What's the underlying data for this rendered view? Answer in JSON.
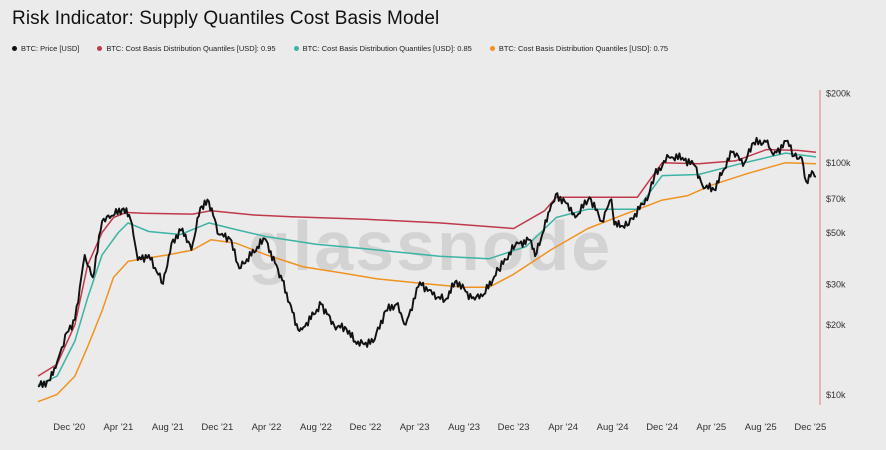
{
  "title": "Risk Indicator: Supply Quantiles Cost Basis Model",
  "watermark": "glassnode",
  "colors": {
    "price": "#111111",
    "q95": "#c0394b",
    "q85": "#3bb3a5",
    "q75": "#f0921f",
    "axis": "#e07a7a"
  },
  "chart_data": {
    "type": "line",
    "title": "Risk Indicator: Supply Quantiles Cost Basis Model",
    "y_scale": "log",
    "ylim": [
      9000,
      200000
    ],
    "y_ticks": [
      {
        "value": 10000,
        "label": "$10k"
      },
      {
        "value": 20000,
        "label": "$20k"
      },
      {
        "value": 30000,
        "label": "$30k"
      },
      {
        "value": 50000,
        "label": "$50k"
      },
      {
        "value": 70000,
        "label": "$70k"
      },
      {
        "value": 100000,
        "label": "$100k"
      },
      {
        "value": 200000,
        "label": "$200k"
      }
    ],
    "x_range": [
      "2020-09-15",
      "2025-12-20"
    ],
    "x_ticks": [
      {
        "date": "2020-12-01",
        "label": "Dec '20"
      },
      {
        "date": "2021-04-01",
        "label": "Apr '21"
      },
      {
        "date": "2021-08-01",
        "label": "Aug '21"
      },
      {
        "date": "2021-12-01",
        "label": "Dec '21"
      },
      {
        "date": "2022-04-01",
        "label": "Apr '22"
      },
      {
        "date": "2022-08-01",
        "label": "Aug '22"
      },
      {
        "date": "2022-12-01",
        "label": "Dec '22"
      },
      {
        "date": "2023-04-01",
        "label": "Apr '23"
      },
      {
        "date": "2023-08-01",
        "label": "Aug '23"
      },
      {
        "date": "2023-12-01",
        "label": "Dec '23"
      },
      {
        "date": "2024-04-01",
        "label": "Apr '24"
      },
      {
        "date": "2024-08-01",
        "label": "Aug '24"
      },
      {
        "date": "2024-12-01",
        "label": "Dec '24"
      },
      {
        "date": "2025-04-01",
        "label": "Apr '25"
      },
      {
        "date": "2025-08-01",
        "label": "Aug '25"
      },
      {
        "date": "2025-12-01",
        "label": "Dec '25"
      }
    ],
    "series": [
      {
        "name": "BTC: Price [USD]",
        "color": "#111111",
        "points": [
          [
            "2020-09-15",
            10800
          ],
          [
            "2020-10-15",
            11500
          ],
          [
            "2020-11-01",
            13800
          ],
          [
            "2020-11-25",
            18500
          ],
          [
            "2020-12-15",
            21000
          ],
          [
            "2021-01-08",
            40000
          ],
          [
            "2021-01-28",
            32000
          ],
          [
            "2021-02-20",
            56000
          ],
          [
            "2021-03-15",
            59000
          ],
          [
            "2021-04-14",
            63500
          ],
          [
            "2021-05-01",
            57000
          ],
          [
            "2021-05-19",
            38000
          ],
          [
            "2021-06-15",
            40000
          ],
          [
            "2021-07-20",
            30000
          ],
          [
            "2021-08-10",
            45000
          ],
          [
            "2021-09-06",
            52000
          ],
          [
            "2021-09-28",
            42000
          ],
          [
            "2021-10-20",
            64000
          ],
          [
            "2021-11-10",
            68000
          ],
          [
            "2021-12-05",
            49000
          ],
          [
            "2022-01-01",
            47000
          ],
          [
            "2022-01-24",
            35000
          ],
          [
            "2022-03-28",
            47000
          ],
          [
            "2022-05-10",
            31000
          ],
          [
            "2022-06-18",
            19000
          ],
          [
            "2022-07-01",
            19500
          ],
          [
            "2022-08-14",
            24500
          ],
          [
            "2022-09-15",
            19800
          ],
          [
            "2022-10-15",
            19200
          ],
          [
            "2022-11-09",
            16500
          ],
          [
            "2022-12-20",
            16800
          ],
          [
            "2023-01-20",
            23000
          ],
          [
            "2023-02-15",
            24500
          ],
          [
            "2023-03-10",
            20000
          ],
          [
            "2023-04-14",
            30500
          ],
          [
            "2023-05-15",
            27000
          ],
          [
            "2023-06-15",
            25500
          ],
          [
            "2023-07-13",
            31000
          ],
          [
            "2023-08-20",
            26000
          ],
          [
            "2023-09-15",
            26500
          ],
          [
            "2023-10-25",
            34500
          ],
          [
            "2023-12-05",
            44000
          ],
          [
            "2024-01-10",
            46500
          ],
          [
            "2024-01-23",
            39500
          ],
          [
            "2024-02-28",
            62000
          ],
          [
            "2024-03-14",
            73000
          ],
          [
            "2024-04-20",
            64000
          ],
          [
            "2024-05-01",
            58000
          ],
          [
            "2024-06-05",
            71000
          ],
          [
            "2024-07-05",
            56000
          ],
          [
            "2024-07-29",
            69500
          ],
          [
            "2024-08-05",
            54000
          ],
          [
            "2024-09-06",
            53500
          ],
          [
            "2024-10-29",
            72500
          ],
          [
            "2024-11-12",
            88000
          ],
          [
            "2024-12-17",
            106000
          ],
          [
            "2025-01-20",
            105000
          ],
          [
            "2025-02-20",
            97000
          ],
          [
            "2025-03-10",
            80000
          ],
          [
            "2025-04-08",
            76500
          ],
          [
            "2025-05-22",
            111000
          ],
          [
            "2025-06-22",
            100000
          ],
          [
            "2025-07-14",
            122000
          ],
          [
            "2025-08-14",
            123000
          ],
          [
            "2025-09-01",
            108000
          ],
          [
            "2025-10-06",
            124500
          ],
          [
            "2025-10-22",
            107000
          ],
          [
            "2025-11-10",
            105000
          ],
          [
            "2025-11-21",
            83000
          ],
          [
            "2025-12-05",
            92000
          ],
          [
            "2025-12-15",
            87000
          ]
        ]
      },
      {
        "name": "BTC: Cost Basis Distribution Quantiles [USD]: 0.95",
        "color": "#c0394b",
        "points": [
          [
            "2020-09-15",
            12000
          ],
          [
            "2020-11-01",
            13500
          ],
          [
            "2020-12-15",
            20000
          ],
          [
            "2021-01-15",
            36000
          ],
          [
            "2021-02-20",
            50000
          ],
          [
            "2021-03-20",
            58000
          ],
          [
            "2021-04-20",
            61000
          ],
          [
            "2021-06-01",
            60500
          ],
          [
            "2021-10-01",
            60000
          ],
          [
            "2021-11-15",
            62000
          ],
          [
            "2022-03-01",
            59500
          ],
          [
            "2022-06-01",
            58500
          ],
          [
            "2022-12-01",
            57000
          ],
          [
            "2023-06-01",
            55000
          ],
          [
            "2023-12-01",
            52000
          ],
          [
            "2024-02-15",
            62000
          ],
          [
            "2024-03-15",
            71000
          ],
          [
            "2024-06-01",
            71000
          ],
          [
            "2024-10-01",
            71000
          ],
          [
            "2024-12-01",
            100000
          ],
          [
            "2025-03-01",
            99000
          ],
          [
            "2025-06-01",
            102000
          ],
          [
            "2025-08-15",
            114000
          ],
          [
            "2025-11-01",
            113000
          ],
          [
            "2025-12-15",
            111000
          ]
        ]
      },
      {
        "name": "BTC: Cost Basis Distribution Quantiles [USD]: 0.85",
        "color": "#3bb3a5",
        "points": [
          [
            "2020-09-15",
            11000
          ],
          [
            "2020-11-01",
            12000
          ],
          [
            "2020-12-15",
            17000
          ],
          [
            "2021-01-15",
            26000
          ],
          [
            "2021-02-20",
            40000
          ],
          [
            "2021-04-01",
            50000
          ],
          [
            "2021-04-25",
            55000
          ],
          [
            "2021-06-15",
            50500
          ],
          [
            "2021-09-01",
            49000
          ],
          [
            "2021-11-10",
            55000
          ],
          [
            "2022-01-15",
            51500
          ],
          [
            "2022-04-01",
            48000
          ],
          [
            "2022-08-01",
            44500
          ],
          [
            "2022-12-01",
            42500
          ],
          [
            "2023-06-01",
            39500
          ],
          [
            "2023-10-01",
            38500
          ],
          [
            "2024-01-01",
            43500
          ],
          [
            "2024-03-15",
            58000
          ],
          [
            "2024-06-01",
            63000
          ],
          [
            "2024-10-01",
            63000
          ],
          [
            "2024-12-01",
            88000
          ],
          [
            "2025-03-01",
            89000
          ],
          [
            "2025-06-01",
            98000
          ],
          [
            "2025-10-01",
            110000
          ],
          [
            "2025-12-15",
            106000
          ]
        ]
      },
      {
        "name": "BTC: Cost Basis Distribution Quantiles [USD]: 0.75",
        "color": "#f0921f",
        "points": [
          [
            "2020-09-15",
            9300
          ],
          [
            "2020-11-01",
            10000
          ],
          [
            "2020-12-15",
            12000
          ],
          [
            "2021-01-15",
            16000
          ],
          [
            "2021-02-20",
            23000
          ],
          [
            "2021-03-20",
            32000
          ],
          [
            "2021-04-25",
            37500
          ],
          [
            "2021-06-01",
            38500
          ],
          [
            "2021-08-01",
            40000
          ],
          [
            "2021-10-01",
            42000
          ],
          [
            "2021-11-15",
            46500
          ],
          [
            "2022-01-15",
            45000
          ],
          [
            "2022-04-01",
            40000
          ],
          [
            "2022-07-01",
            35500
          ],
          [
            "2022-10-01",
            33500
          ],
          [
            "2023-01-01",
            31500
          ],
          [
            "2023-05-01",
            30000
          ],
          [
            "2023-08-01",
            29000
          ],
          [
            "2023-10-01",
            29000
          ],
          [
            "2023-12-01",
            33000
          ],
          [
            "2024-03-01",
            42000
          ],
          [
            "2024-06-01",
            52000
          ],
          [
            "2024-09-01",
            60000
          ],
          [
            "2024-12-01",
            69000
          ],
          [
            "2025-02-01",
            72000
          ],
          [
            "2025-04-01",
            80000
          ],
          [
            "2025-07-01",
            90000
          ],
          [
            "2025-10-01",
            100000
          ],
          [
            "2025-12-15",
            99000
          ]
        ]
      }
    ]
  }
}
